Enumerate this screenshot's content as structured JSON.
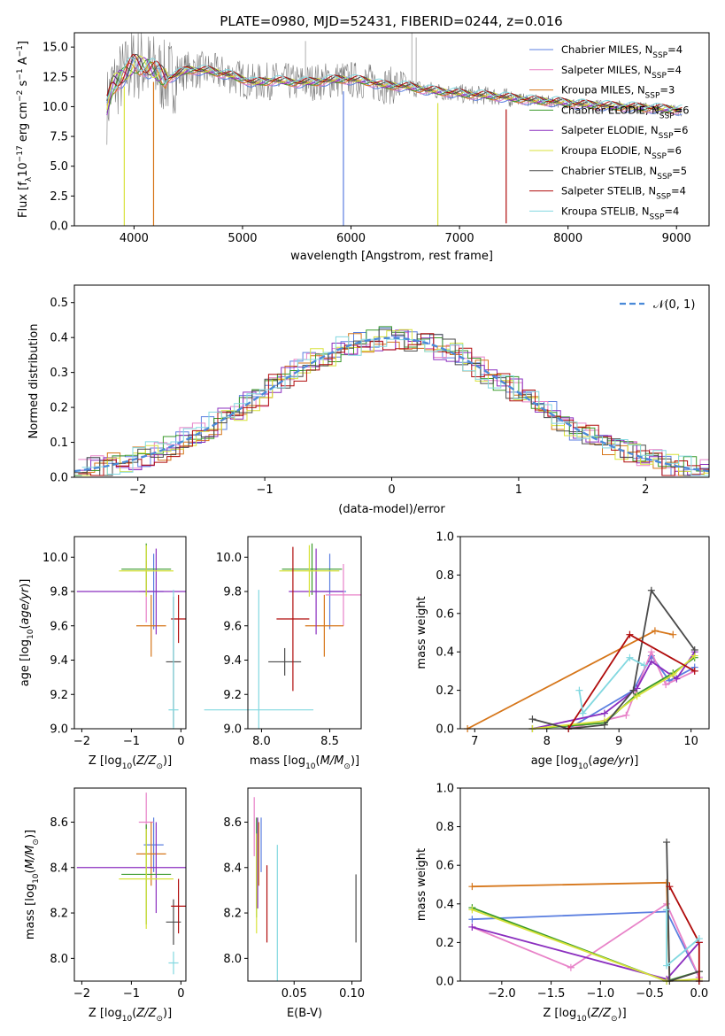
{
  "figure": {
    "title": "PLATE=0980, MJD=52431, FIBERID=0244, z=0.016"
  },
  "colors": {
    "Chabrier MILES": "#5b7fe0",
    "Salpeter MILES": "#e882c8",
    "Kroupa MILES": "#d6761a",
    "Chabrier ELODIE": "#3a9a2a",
    "Salpeter ELODIE": "#8b2fbf",
    "Kroupa ELODIE": "#d8e23a",
    "Chabrier STELIB": "#4a4a4a",
    "Salpeter STELIB": "#b00c0c",
    "Kroupa STELIB": "#82d8e0",
    "data": "#7a7a7a",
    "normal": "#4a8ad8"
  },
  "chart_data": [
    {
      "id": "spectrum",
      "type": "line",
      "title": "PLATE=0980, MJD=52431, FIBERID=0244, z=0.016",
      "xlabel": "wavelength [Angstrom, rest frame]",
      "ylabel": "Flux [f_λ 10^-17 erg cm^-2 s^-1 A^-1]",
      "xlim": [
        3450,
        9300
      ],
      "ylim": [
        0,
        16.2
      ],
      "xticks": [
        4000,
        5000,
        6000,
        7000,
        8000,
        9000
      ],
      "yticks": [
        0.0,
        2.5,
        5.0,
        7.5,
        10.0,
        12.5,
        15.0
      ],
      "legend": "top-right",
      "series": [
        {
          "name": "Chabrier MILES, N_SSP=4"
        },
        {
          "name": "Salpeter MILES, N_SSP=4"
        },
        {
          "name": "Kroupa MILES, N_SSP=3"
        },
        {
          "name": "Chabrier ELODIE, N_SSP=6"
        },
        {
          "name": "Salpeter ELODIE, N_SSP=6"
        },
        {
          "name": "Kroupa ELODIE, N_SSP=6"
        },
        {
          "name": "Chabrier STELIB, N_SSP=5"
        },
        {
          "name": "Salpeter STELIB, N_SSP=4"
        },
        {
          "name": "Kroupa STELIB, N_SSP=4"
        }
      ],
      "continuum": {
        "x": [
          3750,
          3800,
          3900,
          4000,
          4100,
          4200,
          4300,
          4500,
          4700,
          4900,
          5100,
          5300,
          5500,
          5700,
          5900,
          6100,
          6300,
          6500,
          6700,
          6900,
          7100,
          7300,
          7500,
          7700,
          7900,
          8100,
          8300,
          8500,
          8700,
          8900,
          9050
        ],
        "y": [
          10.0,
          11.8,
          12.6,
          13.6,
          13.4,
          13.0,
          12.3,
          13.1,
          13.0,
          12.6,
          12.0,
          12.2,
          12.0,
          12.1,
          12.3,
          12.2,
          11.8,
          11.7,
          11.4,
          11.2,
          11.0,
          10.9,
          10.7,
          10.5,
          10.4,
          10.2,
          10.1,
          10.0,
          9.9,
          9.8,
          9.7
        ]
      },
      "dips": [
        {
          "x": 3910,
          "y": 0.0
        },
        {
          "x": 4180,
          "y": 0.0
        },
        {
          "x": 5930,
          "y": 0.0
        },
        {
          "x": 6800,
          "y": 0.0
        },
        {
          "x": 7430,
          "y": 0.2
        }
      ]
    },
    {
      "id": "residuals",
      "type": "area",
      "xlabel": "(data-model)/error",
      "ylabel": "Normed distribution",
      "xlim": [
        -2.5,
        2.5
      ],
      "ylim": [
        0,
        0.55
      ],
      "xticks": [
        -2,
        -1,
        0,
        1,
        2
      ],
      "yticks": [
        0.0,
        0.1,
        0.2,
        0.3,
        0.4,
        0.5
      ],
      "legend": "top-right",
      "normal_label": "𝒩(0, 1)",
      "bin_width": 0.1
    },
    {
      "id": "age-vs-Z",
      "type": "scatter",
      "xlabel": "Z [log10(Z/Z⊙)]",
      "ylabel": "age  [log10(age/yr)]",
      "xlim": [
        -2.15,
        0.1
      ],
      "ylim": [
        9.0,
        10.12
      ],
      "xticks": [
        -2,
        -1,
        0
      ],
      "yticks": [
        9.0,
        9.2,
        9.4,
        9.6,
        9.8,
        10.0
      ],
      "points": [
        {
          "model": "Chabrier MILES",
          "x": -0.55,
          "xerr": 0.2,
          "y": 9.8,
          "yerr": 0.22
        },
        {
          "model": "Salpeter MILES",
          "x": -0.7,
          "xerr": 0.15,
          "y": 9.8,
          "yerr": 0.18
        },
        {
          "model": "Kroupa MILES",
          "x": -0.6,
          "xerr": 0.3,
          "y": 9.6,
          "yerr": 0.18
        },
        {
          "model": "Chabrier ELODIE",
          "x": -0.7,
          "xerr": 0.5,
          "y": 9.93,
          "yerr": 0.15
        },
        {
          "model": "Salpeter ELODIE",
          "x": -0.5,
          "xerr": 1.6,
          "y": 9.8,
          "yerr": 0.25
        },
        {
          "model": "Kroupa ELODIE",
          "x": -0.7,
          "xerr": 0.55,
          "y": 9.92,
          "yerr": 0.15
        },
        {
          "model": "Chabrier STELIB",
          "x": -0.15,
          "xerr": 0.15,
          "y": 9.39,
          "yerr": 0.38
        },
        {
          "model": "Salpeter STELIB",
          "x": -0.05,
          "xerr": 0.15,
          "y": 9.64,
          "yerr": 0.14
        },
        {
          "model": "Kroupa STELIB",
          "x": -0.15,
          "xerr": 0.1,
          "y": 9.11,
          "yerr": 0.7
        }
      ]
    },
    {
      "id": "age-vs-mass",
      "type": "scatter",
      "xlabel": "mass [log10(M/M⊙)]",
      "ylabel": "",
      "xlim": [
        7.9,
        8.73
      ],
      "ylim": [
        9.0,
        10.12
      ],
      "xticks": [
        8.0,
        8.5
      ],
      "yticks": [
        9.0,
        9.2,
        9.4,
        9.6,
        9.8,
        10.0
      ],
      "points": [
        {
          "model": "Chabrier MILES",
          "x": 8.5,
          "xerr": 0.12,
          "y": 9.8,
          "yerr": 0.22
        },
        {
          "model": "Salpeter MILES",
          "x": 8.6,
          "xerr": 0.13,
          "y": 9.78,
          "yerr": 0.18
        },
        {
          "model": "Kroupa MILES",
          "x": 8.46,
          "xerr": 0.14,
          "y": 9.6,
          "yerr": 0.18
        },
        {
          "model": "Chabrier ELODIE",
          "x": 8.37,
          "xerr": 0.22,
          "y": 9.93,
          "yerr": 0.15
        },
        {
          "model": "Salpeter ELODIE",
          "x": 8.4,
          "xerr": 0.2,
          "y": 9.8,
          "yerr": 0.25
        },
        {
          "model": "Kroupa ELODIE",
          "x": 8.35,
          "xerr": 0.22,
          "y": 9.92,
          "yerr": 0.15
        },
        {
          "model": "Chabrier STELIB",
          "x": 8.17,
          "xerr": 0.12,
          "y": 9.39,
          "yerr": 0.08
        },
        {
          "model": "Salpeter STELIB",
          "x": 8.23,
          "xerr": 0.12,
          "y": 9.64,
          "yerr": 0.42
        },
        {
          "model": "Kroupa STELIB",
          "x": 7.98,
          "xerr": 0.4,
          "y": 9.11,
          "yerr": 0.7
        }
      ]
    },
    {
      "id": "weight-vs-age",
      "type": "line",
      "xlabel": "age  [log10(age/yr)]",
      "ylabel": "mass weight",
      "xlim": [
        6.8,
        10.25
      ],
      "ylim": [
        0.0,
        1.0
      ],
      "xticks": [
        7,
        8,
        9,
        10
      ],
      "yticks": [
        0.0,
        0.2,
        0.4,
        0.6,
        0.8,
        1.0
      ],
      "series": [
        {
          "name": "Chabrier MILES",
          "x": [
            8.3,
            9.2,
            9.45,
            9.7,
            10.05
          ],
          "y": [
            0.0,
            0.2,
            0.38,
            0.25,
            0.32
          ]
        },
        {
          "name": "Salpeter MILES",
          "x": [
            8.3,
            9.1,
            9.45,
            9.65,
            10.05
          ],
          "y": [
            0.0,
            0.07,
            0.4,
            0.23,
            0.3
          ]
        },
        {
          "name": "Kroupa MILES",
          "x": [
            6.9,
            9.5,
            9.75
          ],
          "y": [
            0.0,
            0.51,
            0.49
          ]
        },
        {
          "name": "Chabrier ELODIE",
          "x": [
            7.8,
            8.8,
            9.25,
            9.75,
            10.05
          ],
          "y": [
            0.0,
            0.03,
            0.18,
            0.29,
            0.37
          ]
        },
        {
          "name": "Salpeter ELODIE",
          "x": [
            7.8,
            8.8,
            9.25,
            9.45,
            9.8,
            10.05
          ],
          "y": [
            0.0,
            0.08,
            0.21,
            0.35,
            0.26,
            0.4
          ]
        },
        {
          "name": "Kroupa ELODIE",
          "x": [
            7.8,
            8.8,
            9.25,
            9.75,
            10.05
          ],
          "y": [
            0.0,
            0.04,
            0.17,
            0.28,
            0.38
          ]
        },
        {
          "name": "Chabrier STELIB",
          "x": [
            7.8,
            8.3,
            8.8,
            9.2,
            9.45,
            10.05
          ],
          "y": [
            0.05,
            0.0,
            0.02,
            0.2,
            0.72,
            0.41
          ]
        },
        {
          "name": "Salpeter STELIB",
          "x": [
            8.3,
            9.15,
            10.05
          ],
          "y": [
            0.0,
            0.49,
            0.3
          ]
        },
        {
          "name": "Kroupa STELIB",
          "x": [
            8.45,
            8.5,
            9.15,
            9.35
          ],
          "y": [
            0.2,
            0.08,
            0.37,
            0.33
          ]
        }
      ]
    },
    {
      "id": "mass-vs-Z",
      "type": "scatter",
      "xlabel": "Z [log10(Z/Z⊙)]",
      "ylabel": "mass [log10(M/M⊙)]",
      "xlim": [
        -2.15,
        0.1
      ],
      "ylim": [
        7.9,
        8.75
      ],
      "xticks": [
        -2,
        -1,
        0
      ],
      "yticks": [
        8.0,
        8.2,
        8.4,
        8.6
      ],
      "points": [
        {
          "model": "Chabrier MILES",
          "x": -0.55,
          "xerr": 0.2,
          "y": 8.5,
          "yerr": 0.12
        },
        {
          "model": "Salpeter MILES",
          "x": -0.7,
          "xerr": 0.15,
          "y": 8.6,
          "yerr": 0.13
        },
        {
          "model": "Kroupa MILES",
          "x": -0.6,
          "xerr": 0.3,
          "y": 8.46,
          "yerr": 0.14
        },
        {
          "model": "Chabrier ELODIE",
          "x": -0.7,
          "xerr": 0.5,
          "y": 8.37,
          "yerr": 0.22
        },
        {
          "model": "Salpeter ELODIE",
          "x": -0.5,
          "xerr": 1.6,
          "y": 8.4,
          "yerr": 0.2
        },
        {
          "model": "Kroupa ELODIE",
          "x": -0.7,
          "xerr": 0.55,
          "y": 8.35,
          "yerr": 0.22
        },
        {
          "model": "Chabrier STELIB",
          "x": -0.15,
          "xerr": 0.15,
          "y": 8.16,
          "yerr": 0.1
        },
        {
          "model": "Salpeter STELIB",
          "x": -0.05,
          "xerr": 0.15,
          "y": 8.23,
          "yerr": 0.12
        },
        {
          "model": "Kroupa STELIB",
          "x": -0.15,
          "xerr": 0.1,
          "y": 7.98,
          "yerr": 0.05
        }
      ]
    },
    {
      "id": "mass-vs-ebv",
      "type": "scatter",
      "xlabel": "E(B-V)",
      "ylabel": "",
      "xlim": [
        0.01,
        0.108
      ],
      "ylim": [
        7.9,
        8.75
      ],
      "xticks": [
        0.05,
        0.1
      ],
      "yticks": [
        8.0,
        8.2,
        8.4,
        8.6
      ],
      "points": [
        {
          "model": "Chabrier MILES",
          "x": 0.0215,
          "xerr": 0,
          "y": 8.5,
          "yerr": 0.12
        },
        {
          "model": "Salpeter MILES",
          "x": 0.0155,
          "xerr": 0,
          "y": 8.58,
          "yerr": 0.13
        },
        {
          "model": "Kroupa MILES",
          "x": 0.0195,
          "xerr": 0,
          "y": 8.46,
          "yerr": 0.14
        },
        {
          "model": "Chabrier ELODIE",
          "x": 0.0175,
          "xerr": 0,
          "y": 8.4,
          "yerr": 0.22
        },
        {
          "model": "Salpeter ELODIE",
          "x": 0.0185,
          "xerr": 0,
          "y": 8.42,
          "yerr": 0.2
        },
        {
          "model": "Kroupa ELODIE",
          "x": 0.0175,
          "xerr": 0,
          "y": 8.33,
          "yerr": 0.22
        },
        {
          "model": "Chabrier STELIB",
          "x": 0.1035,
          "xerr": 0,
          "y": 8.22,
          "yerr": 0.15
        },
        {
          "model": "Salpeter STELIB",
          "x": 0.0265,
          "xerr": 0,
          "y": 8.24,
          "yerr": 0.17
        },
        {
          "model": "Kroupa STELIB",
          "x": 0.0355,
          "xerr": 0,
          "y": 8.2,
          "yerr": 0.3
        }
      ]
    },
    {
      "id": "weight-vs-Z",
      "type": "line",
      "xlabel": "Z [log10(Z/Z⊙)]",
      "ylabel": "mass weight",
      "xlim": [
        -2.42,
        0.1
      ],
      "ylim": [
        0.0,
        1.0
      ],
      "xticks": [
        -2.0,
        -1.5,
        -1.0,
        -0.5,
        0.0
      ],
      "yticks": [
        0.0,
        0.2,
        0.4,
        0.6,
        0.8,
        1.0
      ],
      "series": [
        {
          "name": "Chabrier MILES",
          "x": [
            -2.3,
            -0.33,
            0.0
          ],
          "y": [
            0.32,
            0.36,
            0.02
          ]
        },
        {
          "name": "Salpeter MILES",
          "x": [
            -2.3,
            -1.3,
            -0.33,
            0.0
          ],
          "y": [
            0.28,
            0.07,
            0.4,
            0.02
          ]
        },
        {
          "name": "Kroupa MILES",
          "x": [
            -2.3,
            -0.33,
            -0.3
          ],
          "y": [
            0.49,
            0.51,
            0.0
          ]
        },
        {
          "name": "Chabrier ELODIE",
          "x": [
            -2.3,
            -0.33,
            0.0
          ],
          "y": [
            0.38,
            0.0,
            0.05
          ]
        },
        {
          "name": "Salpeter ELODIE",
          "x": [
            -2.3,
            -0.33,
            0.0
          ],
          "y": [
            0.28,
            0.01,
            0.2
          ]
        },
        {
          "name": "Kroupa ELODIE",
          "x": [
            -2.3,
            -0.33,
            0.0
          ],
          "y": [
            0.37,
            0.0,
            0.01
          ]
        },
        {
          "name": "Chabrier STELIB",
          "x": [
            -0.33,
            -0.3,
            0.0,
            0.0
          ],
          "y": [
            0.72,
            0.0,
            0.05,
            0.0
          ]
        },
        {
          "name": "Salpeter STELIB",
          "x": [
            -0.3,
            0.0,
            0.0
          ],
          "y": [
            0.49,
            0.2,
            0.0
          ]
        },
        {
          "name": "Kroupa STELIB",
          "x": [
            -0.33,
            -0.33,
            0.0
          ],
          "y": [
            0.37,
            0.08,
            0.22
          ]
        }
      ]
    }
  ]
}
